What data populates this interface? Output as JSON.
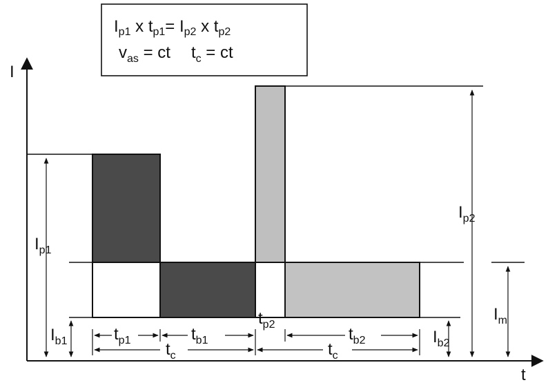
{
  "formula": {
    "line1": {
      "I1": "I",
      "p1a": "p1",
      "x1": " x ",
      "t1": "t",
      "p1b": "p1",
      "eq": "= ",
      "I2": "I",
      "p2a": "p2",
      "x2": " x ",
      "t2": "t",
      "p2b": "p2"
    },
    "line2": {
      "v": "v",
      "as": "as",
      "eq1": " = ct",
      "t": "t",
      "c": "c",
      "eq2": " = ct"
    }
  },
  "axes": {
    "y_main": "I",
    "x_main": "t"
  },
  "labels": {
    "Ip1": {
      "main": "I",
      "sub": "p1"
    },
    "Ip2": {
      "main": "I",
      "sub": "p2"
    },
    "Ib1": {
      "main": "I",
      "sub": "b1"
    },
    "Ib2": {
      "main": "I",
      "sub": "b2"
    },
    "Im": {
      "main": "I",
      "sub": "m"
    },
    "tp1": {
      "main": "t",
      "sub": "p1"
    },
    "tb1": {
      "main": "t",
      "sub": "b1"
    },
    "tp2": {
      "main": "t",
      "sub": "p2"
    },
    "tb2": {
      "main": "t",
      "sub": "b2"
    },
    "tc1": {
      "main": "t",
      "sub": "c"
    },
    "tc2": {
      "main": "t",
      "sub": "c"
    }
  },
  "colors": {
    "dark_fill": "#4a4a4a",
    "light_fill": "#c2c2c2",
    "line": "#111111"
  }
}
